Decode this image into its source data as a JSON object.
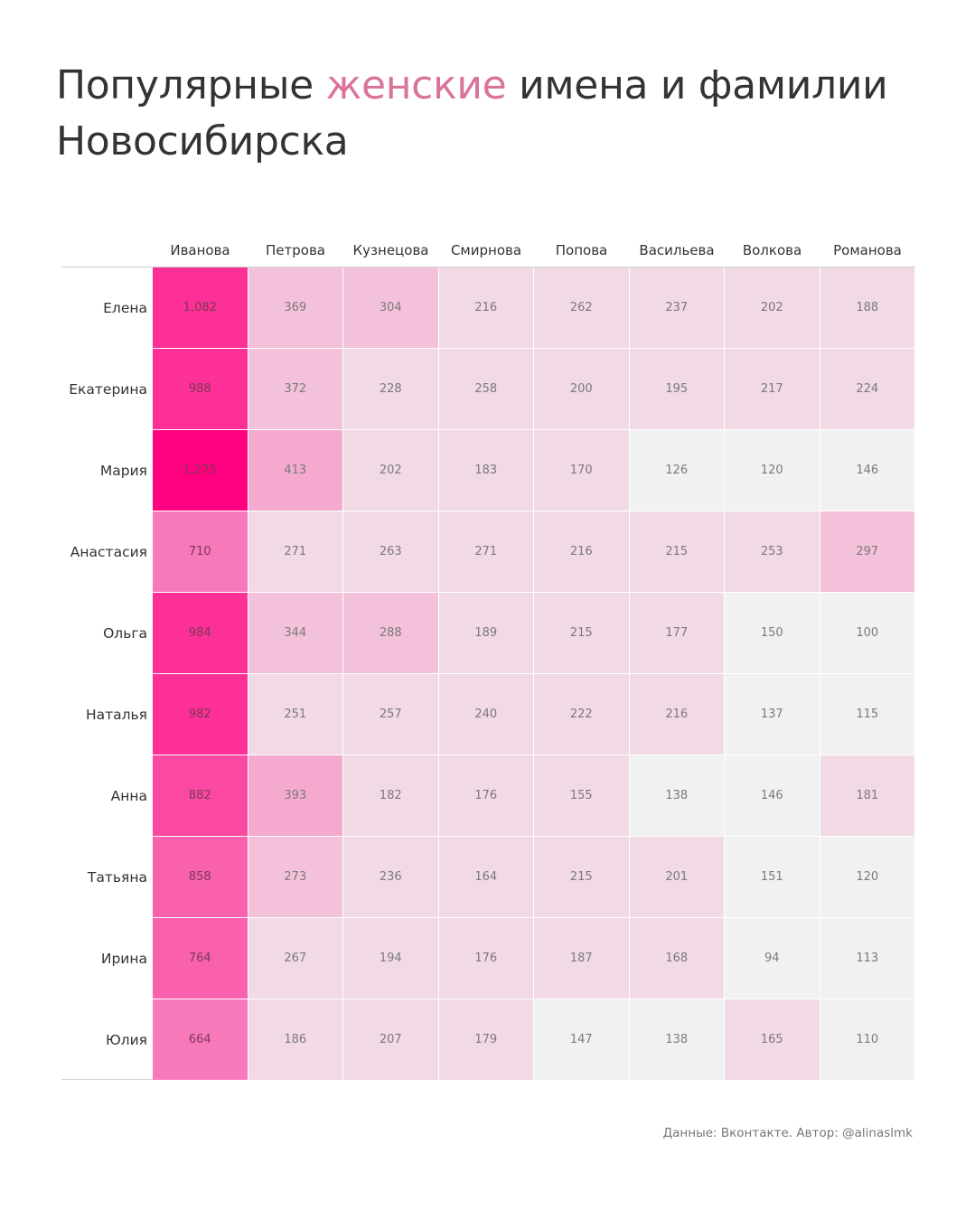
{
  "title": {
    "part1": "Популярные ",
    "accent": "женские",
    "part2": " имена и фамилии Новосибирска"
  },
  "footer": "Данные: Вконтакте. Автор: @alinaslmk",
  "colors": {
    "max": "#ff0080",
    "base": "#f1f1f1",
    "text": "#333333"
  },
  "chart_data": {
    "type": "heatmap",
    "title": "Популярные женские имена и фамилии Новосибирска",
    "x": [
      "Иванова",
      "Петрова",
      "Кузнецова",
      "Смирнова",
      "Попова",
      "Васильева",
      "Волкова",
      "Романова"
    ],
    "y": [
      "Елена",
      "Екатерина",
      "Мария",
      "Анастасия",
      "Ольга",
      "Наталья",
      "Анна",
      "Татьяна",
      "Ирина",
      "Юлия"
    ],
    "values": [
      [
        1082,
        369,
        304,
        216,
        262,
        237,
        202,
        188
      ],
      [
        988,
        372,
        228,
        258,
        200,
        195,
        217,
        224
      ],
      [
        1275,
        413,
        202,
        183,
        170,
        126,
        120,
        146
      ],
      [
        710,
        271,
        263,
        271,
        216,
        215,
        253,
        297
      ],
      [
        984,
        344,
        288,
        189,
        215,
        177,
        150,
        100
      ],
      [
        982,
        251,
        257,
        240,
        222,
        216,
        137,
        115
      ],
      [
        882,
        393,
        182,
        176,
        155,
        138,
        146,
        181
      ],
      [
        858,
        273,
        236,
        164,
        215,
        201,
        151,
        120
      ],
      [
        764,
        267,
        194,
        176,
        187,
        168,
        94,
        113
      ],
      [
        664,
        186,
        207,
        179,
        147,
        138,
        165,
        110
      ]
    ],
    "labels": [
      [
        "1,082",
        "369",
        "304",
        "216",
        "262",
        "237",
        "202",
        "188"
      ],
      [
        "988",
        "372",
        "228",
        "258",
        "200",
        "195",
        "217",
        "224"
      ],
      [
        "1,275",
        "413",
        "202",
        "183",
        "170",
        "126",
        "120",
        "146"
      ],
      [
        "710",
        "271",
        "263",
        "271",
        "216",
        "215",
        "253",
        "297"
      ],
      [
        "984",
        "344",
        "288",
        "189",
        "215",
        "177",
        "150",
        "100"
      ],
      [
        "982",
        "251",
        "257",
        "240",
        "222",
        "216",
        "137",
        "115"
      ],
      [
        "882",
        "393",
        "182",
        "176",
        "155",
        "138",
        "146",
        "181"
      ],
      [
        "858",
        "273",
        "236",
        "164",
        "215",
        "201",
        "151",
        "120"
      ],
      [
        "764",
        "267",
        "194",
        "176",
        "187",
        "168",
        "94",
        "113"
      ],
      [
        "664",
        "186",
        "207",
        "179",
        "147",
        "138",
        "165",
        "110"
      ]
    ],
    "legend": "none"
  }
}
